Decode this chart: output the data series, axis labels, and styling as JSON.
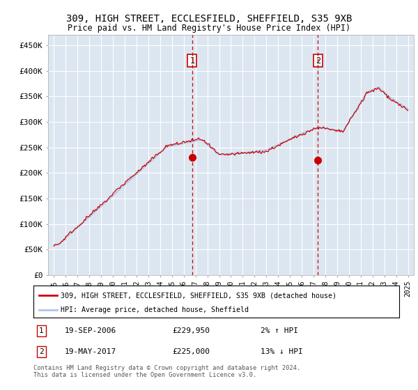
{
  "title1": "309, HIGH STREET, ECCLESFIELD, SHEFFIELD, S35 9XB",
  "title2": "Price paid vs. HM Land Registry's House Price Index (HPI)",
  "ylabel_ticks": [
    "£0",
    "£50K",
    "£100K",
    "£150K",
    "£200K",
    "£250K",
    "£300K",
    "£350K",
    "£400K",
    "£450K"
  ],
  "ytick_values": [
    0,
    50000,
    100000,
    150000,
    200000,
    250000,
    300000,
    350000,
    400000,
    450000
  ],
  "ylim": [
    0,
    470000
  ],
  "xlim_start": 1994.5,
  "xlim_end": 2025.5,
  "plot_bg_color": "#dce6f1",
  "hpi_color": "#aec6e8",
  "price_color": "#cc0000",
  "marker1_year": 2006.72,
  "marker1_price": 229950,
  "marker1_date": "19-SEP-2006",
  "marker1_pct": "2% ↑ HPI",
  "marker2_year": 2017.38,
  "marker2_price": 225000,
  "marker2_date": "19-MAY-2017",
  "marker2_pct": "13% ↓ HPI",
  "legend_line1": "309, HIGH STREET, ECCLESFIELD, SHEFFIELD, S35 9XB (detached house)",
  "legend_line2": "HPI: Average price, detached house, Sheffield",
  "footer": "Contains HM Land Registry data © Crown copyright and database right 2024.\nThis data is licensed under the Open Government Licence v3.0.",
  "xtick_years": [
    1995,
    1996,
    1997,
    1998,
    1999,
    2000,
    2001,
    2002,
    2003,
    2004,
    2005,
    2006,
    2007,
    2008,
    2009,
    2010,
    2011,
    2012,
    2013,
    2014,
    2015,
    2016,
    2017,
    2018,
    2019,
    2020,
    2021,
    2022,
    2023,
    2024,
    2025
  ]
}
